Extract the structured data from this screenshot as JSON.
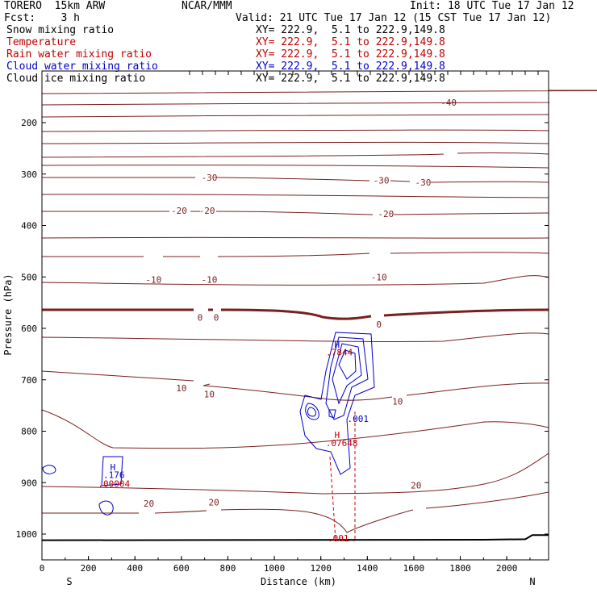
{
  "header": {
    "model": "TORERO  15km ARW",
    "center": "NCAR/MMM",
    "init": "Init: 18 UTC Tue 17 Jan 12",
    "fcst": "Fcst:    3 h",
    "valid": "Valid: 21 UTC Tue 17 Jan 12 (15 CST Tue 17 Jan 12)"
  },
  "fields": [
    {
      "name": "Snow mixing ratio",
      "xy": "XY= 222.9,  5.1 to 222.9,149.8",
      "color": "#000000"
    },
    {
      "name": "Temperature",
      "xy": "XY= 222.9,  5.1 to 222.9,149.8",
      "color": "#c00000"
    },
    {
      "name": "Rain water mixing ratio",
      "xy": "XY= 222.9,  5.1 to 222.9,149.8",
      "color": "#c00000"
    },
    {
      "name": "Cloud water mixing ratio",
      "xy": "XY= 222.9,  5.1 to 222.9,149.8",
      "color": "#0000cc"
    },
    {
      "name": "Cloud ice mixing ratio",
      "xy": "XY= 222.9,  5.1 to 222.9,149.8",
      "color": "#000000"
    }
  ],
  "chart_data": {
    "type": "contour-cross-section",
    "xlabel": "Distance (km)",
    "ylabel": "Pressure (hPa)",
    "xlim": [
      0,
      2180
    ],
    "ylim": [
      1050,
      100
    ],
    "x_ticks": [
      0,
      200,
      400,
      600,
      800,
      1000,
      1200,
      1400,
      1600,
      1800,
      2000
    ],
    "y_ticks": [
      200,
      300,
      400,
      500,
      600,
      700,
      800,
      900,
      1000
    ],
    "endpoints": {
      "left": "S",
      "right": "N"
    },
    "temperature_labels": [
      {
        "text": "-40",
        "x": 1750,
        "p": 161
      },
      {
        "text": "-30",
        "x": 720,
        "p": 307
      },
      {
        "text": "-30",
        "x": 1460,
        "p": 312
      },
      {
        "text": "-30",
        "x": 1640,
        "p": 316
      },
      {
        "text": "-20",
        "x": 590,
        "p": 371
      },
      {
        "text": "-20",
        "x": 710,
        "p": 371
      },
      {
        "text": "-20",
        "x": 1480,
        "p": 377
      },
      {
        "text": "-10",
        "x": 480,
        "p": 505
      },
      {
        "text": "-10",
        "x": 720,
        "p": 505
      },
      {
        "text": "-10",
        "x": 1450,
        "p": 500
      },
      {
        "text": "0",
        "x": 680,
        "p": 579
      },
      {
        "text": "0",
        "x": 750,
        "p": 579
      },
      {
        "text": "0",
        "x": 1450,
        "p": 592
      },
      {
        "text": "10",
        "x": 600,
        "p": 716
      },
      {
        "text": "10",
        "x": 720,
        "p": 728
      },
      {
        "text": "10",
        "x": 1530,
        "p": 742
      },
      {
        "text": "20",
        "x": 460,
        "p": 940
      },
      {
        "text": "20",
        "x": 740,
        "p": 938
      },
      {
        "text": "20",
        "x": 1610,
        "p": 905
      }
    ],
    "extrema_labels": [
      {
        "text": "H",
        "x": 1270,
        "p": 631,
        "color": "#0000cc"
      },
      {
        "text": ".7844",
        "x": 1280,
        "p": 646,
        "color": "#c00000"
      },
      {
        "text": "H",
        "x": 1270,
        "p": 807,
        "color": "#c00000"
      },
      {
        "text": ".07648",
        "x": 1290,
        "p": 823,
        "color": "#c00000"
      },
      {
        "text": ".001",
        "x": 1360,
        "p": 776,
        "color": "#0000cc"
      },
      {
        "text": "H",
        "x": 305,
        "p": 870,
        "color": "#0000cc"
      },
      {
        "text": ".176",
        "x": 310,
        "p": 885,
        "color": "#0000cc"
      },
      {
        "text": ".00004",
        "x": 310,
        "p": 902,
        "color": "#c00000"
      },
      {
        "text": ".001",
        "x": 1275,
        "p": 1008,
        "color": "#c00000"
      }
    ],
    "colors": {
      "temperature": "#7a1f1f",
      "freezing": "#7a1f1f",
      "cloud_water": "#0000cc",
      "rain": "#cc0000",
      "ground": "#000000"
    }
  }
}
